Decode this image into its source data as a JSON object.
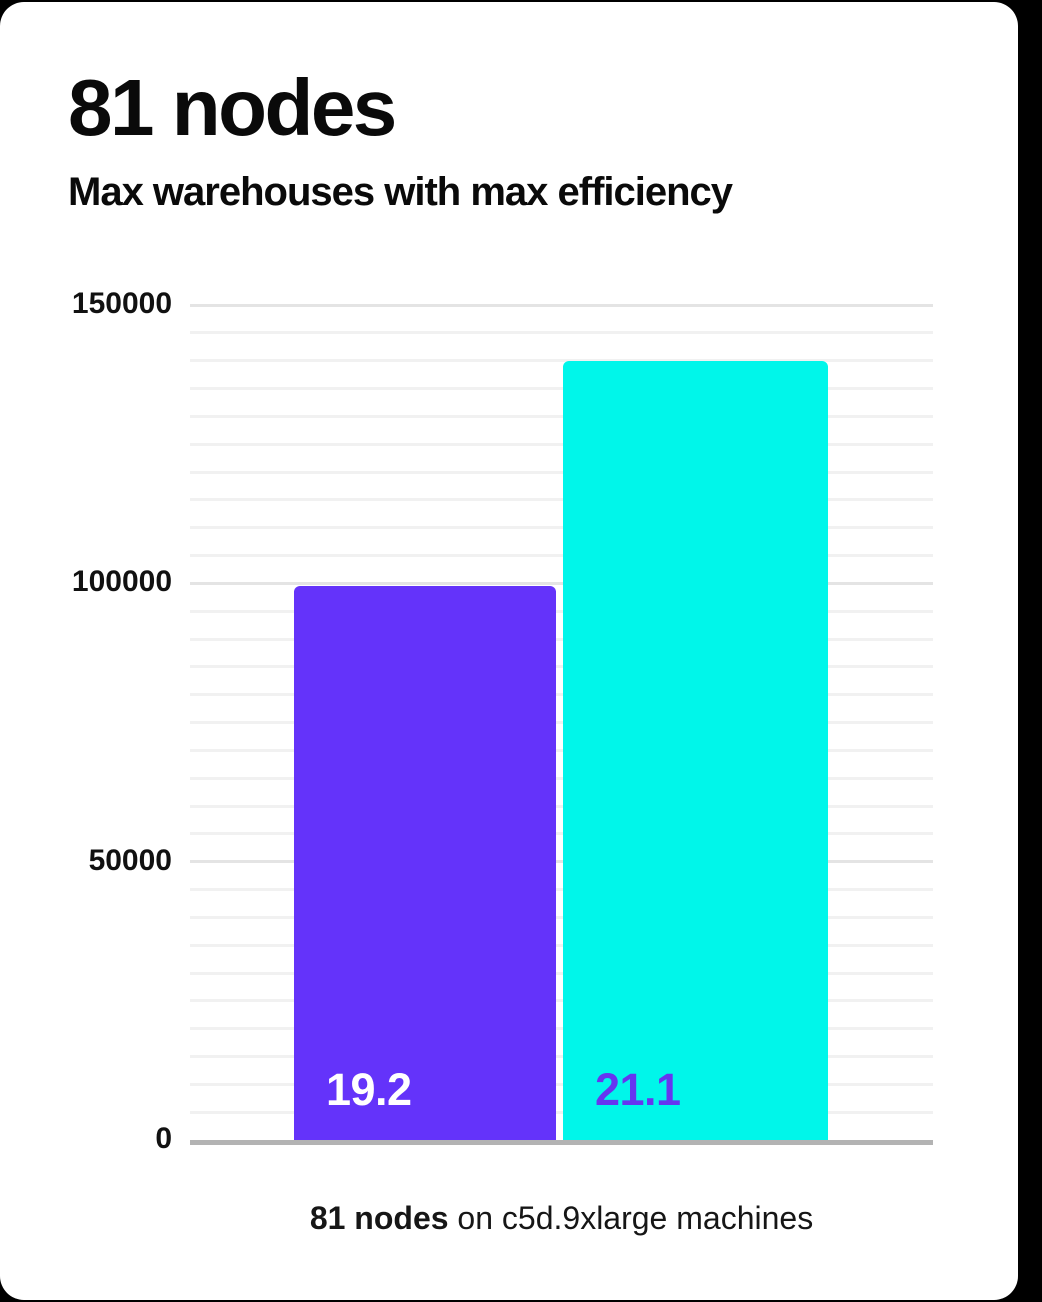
{
  "header": {
    "title": "81 nodes",
    "subtitle": "Max warehouses with max efficiency"
  },
  "caption": {
    "bold": "81 nodes",
    "rest": " on c5d.9xlarge machines"
  },
  "colors": {
    "page_background": "#000000",
    "card_background": "#ffffff",
    "text": "#0a0a0a",
    "grid_major": "#e4e4e4",
    "grid_minor": "#f1f1f1",
    "axis_baseline": "#b3b3b3",
    "bars": [
      "#6433fa",
      "#00f6ea"
    ],
    "bar_label_colors": [
      "#ffffff",
      "#6635f0"
    ]
  },
  "chart_data": {
    "type": "bar",
    "title": "81 nodes",
    "subtitle": "Max warehouses with max efficiency",
    "caption": "81 nodes on c5d.9xlarge machines",
    "categories": [
      "19.2",
      "21.1"
    ],
    "series": [
      {
        "name": "Max warehouses",
        "values": [
          99500,
          140000
        ]
      }
    ],
    "bar_labels": [
      "19.2",
      "21.1"
    ],
    "xlabel": "",
    "ylabel": "",
    "ylim": [
      0,
      150000
    ],
    "yticks": [
      0,
      50000,
      100000,
      150000
    ],
    "ytick_labels": [
      "0",
      "50000",
      "100000",
      "150000"
    ],
    "minor_grid_step": 5000,
    "major_grid_step": 50000,
    "grid": "horizontal",
    "legend_position": "none"
  }
}
